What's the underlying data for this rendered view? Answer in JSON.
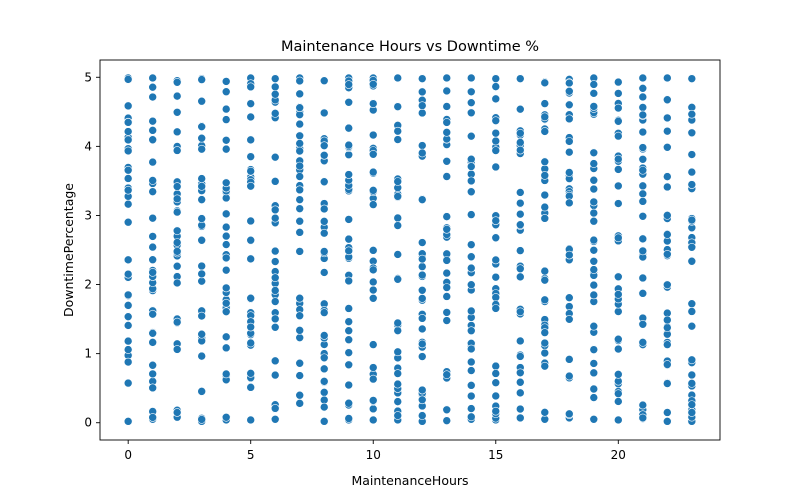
{
  "chart_data": {
    "type": "scatter",
    "title": "Maintenance Hours vs Downtime %",
    "xlabel": "MaintenanceHours",
    "ylabel": "DowntimePercentage",
    "xlim": [
      -1.15,
      24.15
    ],
    "ylim": [
      -0.25,
      5.25
    ],
    "x_ticks": [
      0,
      5,
      10,
      15,
      20
    ],
    "y_ticks": [
      0,
      1,
      2,
      3,
      4,
      5
    ],
    "grid": false,
    "legend": "none",
    "marker_color": "#1f77b4",
    "marker_edge_color": "#ffffff",
    "x_values": [
      0,
      1,
      2,
      3,
      4,
      5,
      6,
      7,
      8,
      9,
      10,
      11,
      12,
      13,
      14,
      15,
      16,
      17,
      18,
      19,
      20,
      21,
      22,
      23
    ],
    "y_range_per_x": [
      {
        "x": 0,
        "min": 0.02,
        "max": 4.99
      },
      {
        "x": 1,
        "min": 0.05,
        "max": 4.99
      },
      {
        "x": 2,
        "min": 0.08,
        "max": 4.95
      },
      {
        "x": 3,
        "min": 0.02,
        "max": 4.98
      },
      {
        "x": 4,
        "min": 0.04,
        "max": 4.94
      },
      {
        "x": 5,
        "min": 0.04,
        "max": 4.99
      },
      {
        "x": 6,
        "min": 0.05,
        "max": 4.98
      },
      {
        "x": 7,
        "min": 0.28,
        "max": 4.99
      },
      {
        "x": 8,
        "min": 0.02,
        "max": 4.95
      },
      {
        "x": 9,
        "min": 0.04,
        "max": 4.99
      },
      {
        "x": 10,
        "min": 0.04,
        "max": 4.99
      },
      {
        "x": 11,
        "min": 0.04,
        "max": 4.99
      },
      {
        "x": 12,
        "min": 0.02,
        "max": 4.98
      },
      {
        "x": 13,
        "min": 0.03,
        "max": 4.99
      },
      {
        "x": 14,
        "min": 0.05,
        "max": 4.99
      },
      {
        "x": 15,
        "min": 0.04,
        "max": 4.98
      },
      {
        "x": 16,
        "min": 0.07,
        "max": 4.98
      },
      {
        "x": 17,
        "min": 0.05,
        "max": 4.93
      },
      {
        "x": 18,
        "min": 0.07,
        "max": 4.97
      },
      {
        "x": 19,
        "min": 0.05,
        "max": 4.99
      },
      {
        "x": 20,
        "min": 0.04,
        "max": 4.93
      },
      {
        "x": 21,
        "min": 0.06,
        "max": 4.99
      },
      {
        "x": 22,
        "min": 0.02,
        "max": 4.99
      },
      {
        "x": 23,
        "min": 0.02,
        "max": 4.98
      }
    ],
    "points_per_x": 34
  }
}
